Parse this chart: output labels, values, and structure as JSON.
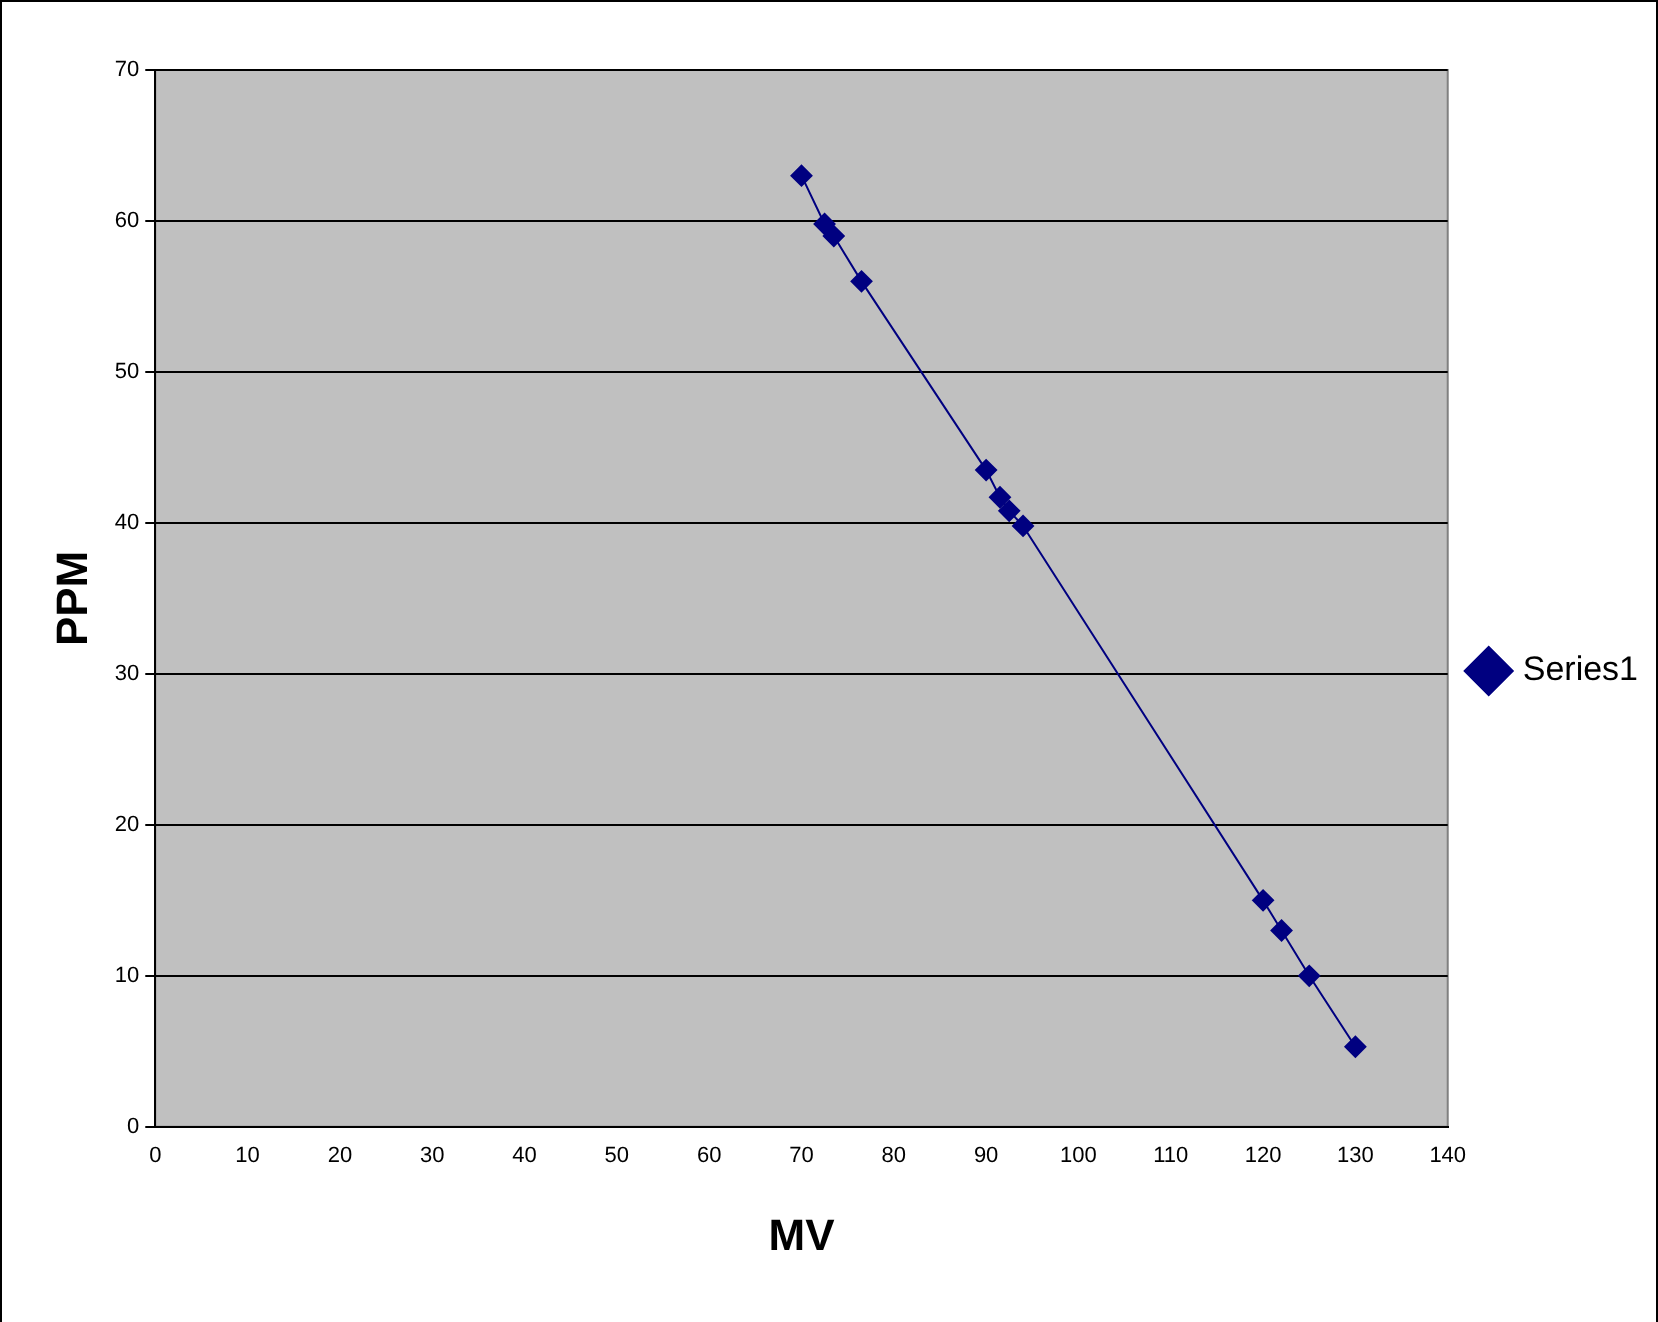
{
  "chart_data": {
    "type": "line",
    "xlabel": "MV",
    "ylabel": "PPM",
    "x": [
      70,
      72.5,
      73.5,
      76.5,
      90,
      91.5,
      92.5,
      94,
      120,
      122,
      125,
      130
    ],
    "series": [
      {
        "name": "Series1",
        "color": "#000080",
        "values": [
          63,
          59.8,
          59,
          56,
          43.5,
          41.7,
          40.8,
          39.8,
          15,
          13,
          10,
          5.3
        ]
      }
    ],
    "xlim": [
      0,
      140
    ],
    "xticks": [
      0,
      10,
      20,
      30,
      40,
      50,
      60,
      70,
      80,
      90,
      100,
      110,
      120,
      130,
      140
    ],
    "ylim": [
      0,
      70
    ],
    "yticks": [
      0,
      10,
      20,
      30,
      40,
      50,
      60,
      70
    ],
    "grid": "y",
    "legend": "right",
    "marker": "diamond",
    "line_style": "solid"
  }
}
